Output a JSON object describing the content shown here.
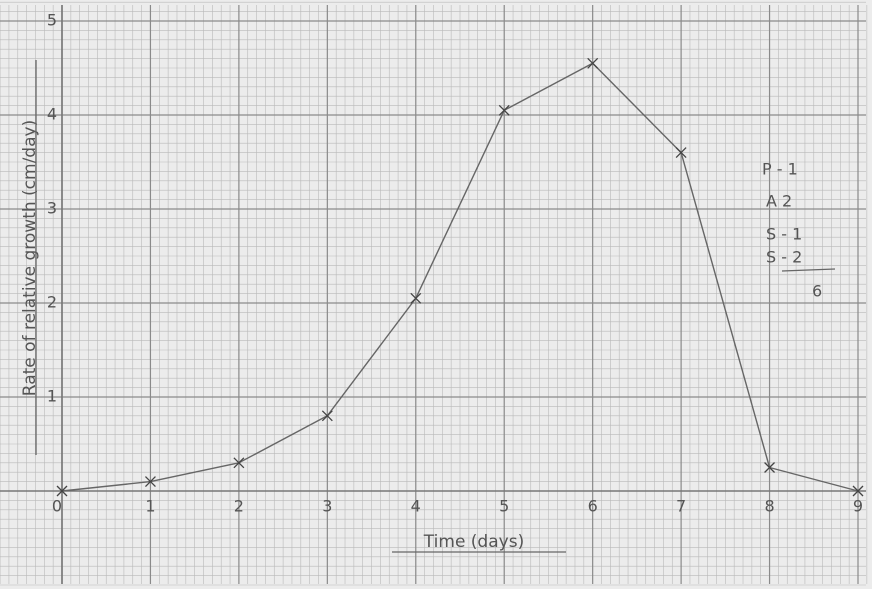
{
  "chart_data": {
    "type": "line",
    "y_label": "Rate of relative growth (cm/day)",
    "x_label": "Time (days)",
    "x": [
      0,
      1,
      2,
      3,
      4,
      5,
      6,
      7,
      8,
      9
    ],
    "series": [
      {
        "color": "#666666",
        "values": [
          0,
          0.1,
          0.3,
          0.8,
          2.05,
          4.05,
          4.55,
          3.6,
          0.25,
          0
        ]
      }
    ],
    "xlim": [
      0,
      9
    ],
    "ylim": [
      0,
      5
    ],
    "xticks": [
      0,
      1,
      2,
      3,
      4,
      5,
      6,
      7,
      8,
      9
    ],
    "yticks": [
      1,
      2,
      3,
      4,
      5
    ],
    "grid": true,
    "annotations": [
      "P - 1",
      "A 2",
      "S - 1",
      "S - 2",
      "6"
    ]
  }
}
